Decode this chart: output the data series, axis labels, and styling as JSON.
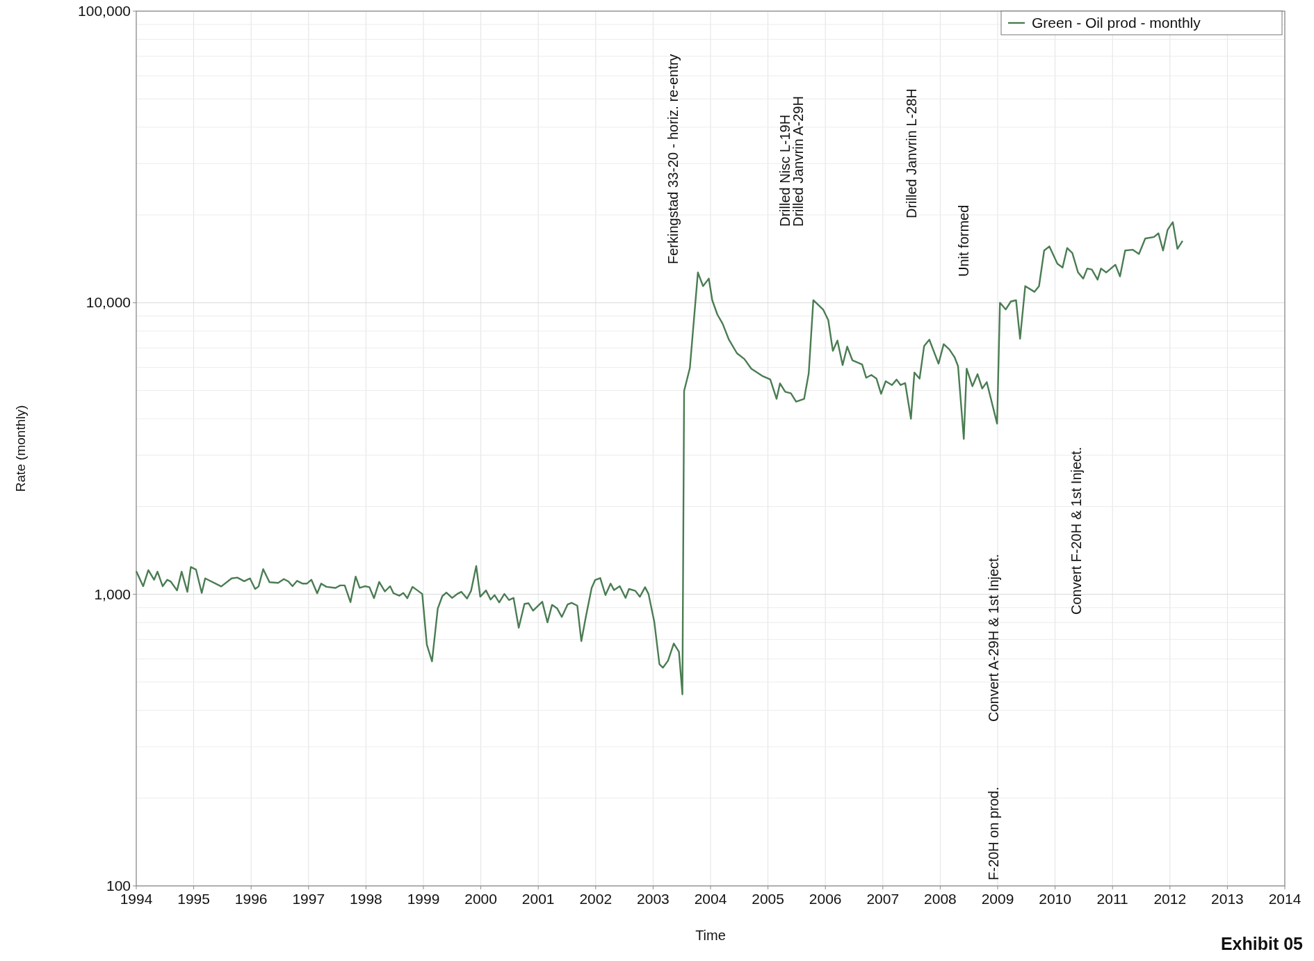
{
  "chart_data": {
    "type": "line",
    "xlabel": "Time",
    "ylabel": "Rate (monthly)",
    "log": "y",
    "grid": true,
    "legend": "top right",
    "line_style": "solid",
    "marker": "none",
    "xlim": [
      1994,
      2014
    ],
    "xticks": [
      1994,
      1995,
      1996,
      1997,
      1998,
      1999,
      2000,
      2001,
      2002,
      2003,
      2004,
      2005,
      2006,
      2007,
      2008,
      2009,
      2010,
      2011,
      2012,
      2013,
      2014
    ],
    "ylim": [
      100,
      100000
    ],
    "yticks": [
      {
        "value": 100,
        "label": "100"
      },
      {
        "value": 200,
        "label": null
      },
      {
        "value": 300,
        "label": null
      },
      {
        "value": 400,
        "label": null
      },
      {
        "value": 500,
        "label": null
      },
      {
        "value": 600,
        "label": null
      },
      {
        "value": 700,
        "label": null
      },
      {
        "value": 800,
        "label": null
      },
      {
        "value": 900,
        "label": null
      },
      {
        "value": 1000,
        "label": "1,000"
      },
      {
        "value": 2000,
        "label": null
      },
      {
        "value": 3000,
        "label": null
      },
      {
        "value": 4000,
        "label": null
      },
      {
        "value": 5000,
        "label": null
      },
      {
        "value": 6000,
        "label": null
      },
      {
        "value": 7000,
        "label": null
      },
      {
        "value": 8000,
        "label": null
      },
      {
        "value": 9000,
        "label": null
      },
      {
        "value": 10000,
        "label": "10,000"
      },
      {
        "value": 20000,
        "label": null
      },
      {
        "value": 30000,
        "label": null
      },
      {
        "value": 40000,
        "label": null
      },
      {
        "value": 50000,
        "label": null
      },
      {
        "value": 60000,
        "label": null
      },
      {
        "value": 70000,
        "label": null
      },
      {
        "value": 80000,
        "label": null
      },
      {
        "value": 90000,
        "label": null
      },
      {
        "value": 100000,
        "label": "100,000"
      }
    ],
    "series": [
      {
        "name": "Green - Oil prod - monthly",
        "color": "#4a7c52",
        "x": [
          1994.0,
          1994.12,
          1994.21,
          1994.31,
          1994.37,
          1994.46,
          1994.54,
          1994.6,
          1994.71,
          1994.79,
          1994.89,
          1994.95,
          1995.04,
          1995.14,
          1995.2,
          1995.48,
          1995.66,
          1995.76,
          1995.88,
          1995.98,
          1996.07,
          1996.13,
          1996.21,
          1996.32,
          1996.47,
          1996.57,
          1996.65,
          1996.72,
          1996.8,
          1996.9,
          1996.97,
          1997.05,
          1997.15,
          1997.22,
          1997.31,
          1997.47,
          1997.55,
          1997.63,
          1997.73,
          1997.82,
          1997.89,
          1997.98,
          1998.06,
          1998.14,
          1998.23,
          1998.33,
          1998.42,
          1998.48,
          1998.58,
          1998.65,
          1998.72,
          1998.81,
          1998.98,
          1999.06,
          1999.15,
          1999.25,
          1999.33,
          1999.4,
          1999.5,
          1999.6,
          1999.66,
          1999.76,
          1999.83,
          1999.92,
          1999.99,
          2000.09,
          2000.17,
          2000.24,
          2000.32,
          2000.41,
          2000.49,
          2000.57,
          2000.66,
          2000.76,
          2000.83,
          2000.91,
          2001.07,
          2001.16,
          2001.24,
          2001.33,
          2001.41,
          2001.51,
          2001.58,
          2001.68,
          2001.75,
          2001.83,
          2001.93,
          2001.99,
          2002.08,
          2002.17,
          2002.26,
          2002.32,
          2002.42,
          2002.52,
          2002.58,
          2002.69,
          2002.77,
          2002.86,
          2002.92,
          2003.02,
          2003.11,
          2003.17,
          2003.26,
          2003.36,
          2003.45,
          2003.51,
          2003.54,
          2003.64,
          2003.78,
          2003.87,
          2003.97,
          2004.03,
          2004.12,
          2004.21,
          2004.32,
          2004.46,
          2004.59,
          2004.71,
          2004.9,
          2005.04,
          2005.15,
          2005.21,
          2005.3,
          2005.4,
          2005.49,
          2005.63,
          2005.71,
          2005.79,
          2005.96,
          2006.05,
          2006.13,
          2006.21,
          2006.3,
          2006.38,
          2006.47,
          2006.64,
          2006.71,
          2006.8,
          2006.89,
          2006.97,
          2007.05,
          2007.16,
          2007.24,
          2007.31,
          2007.39,
          2007.49,
          2007.55,
          2007.64,
          2007.72,
          2007.81,
          2007.97,
          2008.06,
          2008.16,
          2008.25,
          2008.31,
          2008.41,
          2008.46,
          2008.56,
          2008.65,
          2008.73,
          2008.81,
          2008.99,
          2009.04,
          2009.14,
          2009.23,
          2009.32,
          2009.39,
          2009.48,
          2009.64,
          2009.72,
          2009.81,
          2009.9,
          2010.04,
          2010.13,
          2010.21,
          2010.3,
          2010.4,
          2010.49,
          2010.56,
          2010.64,
          2010.74,
          2010.8,
          2010.89,
          2011.05,
          2011.13,
          2011.22,
          2011.35,
          2011.46,
          2011.57,
          2011.72,
          2011.8,
          2011.88,
          2011.96,
          2012.05,
          2012.13,
          2012.22
        ],
        "values": [
          1200,
          1066,
          1210,
          1122,
          1196,
          1066,
          1122,
          1106,
          1031,
          1196,
          1020,
          1241,
          1216,
          1011,
          1134,
          1064,
          1134,
          1141,
          1109,
          1134,
          1043,
          1064,
          1220,
          1100,
          1094,
          1128,
          1106,
          1066,
          1112,
          1088,
          1088,
          1122,
          1008,
          1088,
          1061,
          1052,
          1073,
          1073,
          940,
          1150,
          1052,
          1066,
          1058,
          970,
          1103,
          1023,
          1066,
          1008,
          989,
          1011,
          970,
          1061,
          1003,
          672,
          589,
          894,
          986,
          1014,
          972,
          1006,
          1020,
          967,
          1028,
          1251,
          981,
          1031,
          959,
          994,
          938,
          1003,
          956,
          972,
          768,
          927,
          932,
          879,
          943,
          801,
          920,
          894,
          836,
          922,
          935,
          914,
          691,
          840,
          1052,
          1119,
          1137,
          994,
          1088,
          1034,
          1066,
          972,
          1043,
          1028,
          981,
          1058,
          1003,
          806,
          576,
          560,
          592,
          678,
          635,
          454,
          4980,
          5970,
          12700,
          11400,
          12100,
          10200,
          9100,
          8480,
          7470,
          6710,
          6410,
          5940,
          5610,
          5460,
          4680,
          5290,
          4950,
          4890,
          4580,
          4680,
          5730,
          10200,
          9480,
          8720,
          6840,
          7420,
          6110,
          7070,
          6350,
          6140,
          5530,
          5650,
          5490,
          4870,
          5380,
          5220,
          5450,
          5220,
          5300,
          4000,
          5760,
          5490,
          7110,
          7470,
          6180,
          7210,
          6910,
          6500,
          6060,
          3410,
          5940,
          5170,
          5690,
          5080,
          5340,
          3850,
          10000,
          9480,
          10100,
          10200,
          7520,
          11400,
          10900,
          11400,
          15100,
          15600,
          13600,
          13200,
          15400,
          14800,
          12700,
          12100,
          13100,
          13000,
          12000,
          13100,
          12700,
          13500,
          12300,
          15100,
          15200,
          14700,
          16600,
          16800,
          17300,
          15100,
          17800,
          18900,
          15300,
          16300
        ]
      }
    ],
    "annotations": [
      "Ferkingstad 33-20 - horiz. re-entry",
      "Drilled Nisc L-19H",
      "Drilled Janvrin A-29H",
      "Drilled Janvrin L-28H",
      "Unit formed",
      "Convert A-29H & 1st Inject.",
      "F-20H on prod.",
      "Convert F-20H & 1st Inject.",
      "Exhibit 05"
    ]
  }
}
